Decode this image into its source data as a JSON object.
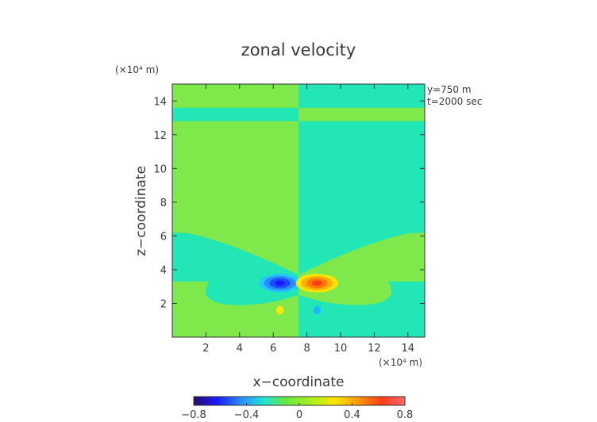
{
  "chart_data": {
    "type": "heatmap",
    "title": "zonal velocity",
    "xlabel": "x−coordinate",
    "ylabel": "z−coordinate",
    "x_unit": "(×10⁴ m)",
    "y_unit": "(×10⁴ m)",
    "xlim": [
      0,
      15
    ],
    "ylim": [
      0,
      15
    ],
    "xticks": [
      2,
      4,
      6,
      8,
      10,
      12,
      14
    ],
    "yticks": [
      2,
      4,
      6,
      8,
      10,
      12,
      14
    ],
    "xtick_labels": [
      "2",
      "4",
      "6",
      "8",
      "10",
      "12",
      "14"
    ],
    "ytick_labels": [
      "2",
      "4",
      "6",
      "8",
      "10",
      "12",
      "14"
    ],
    "annotations": [
      "y=750  m",
      "t=2000 sec"
    ],
    "colorbar": {
      "min": -0.8,
      "max": 0.8,
      "ticks": [
        -0.8,
        -0.4,
        0,
        0.4,
        0.8
      ],
      "tick_labels": [
        "−0.8",
        "−0.4",
        "0",
        "0.4",
        "0.8"
      ],
      "colors": [
        "#2a0a66",
        "#1a1aff",
        "#2a8cff",
        "#1ee6d2",
        "#6fe83a",
        "#a8f01e",
        "#ffe600",
        "#ff9a00",
        "#ff3a1a",
        "#ff6a6a"
      ]
    },
    "features": [
      {
        "name": "negative core",
        "x": 6.4,
        "z": 3.2,
        "value": -0.45
      },
      {
        "name": "positive core",
        "x": 8.6,
        "z": 3.2,
        "value": 0.45
      },
      {
        "name": "small positive blob",
        "x": 6.4,
        "z": 1.6,
        "value": 0.2
      },
      {
        "name": "small negative blob",
        "x": 8.6,
        "z": 1.6,
        "value": -0.2
      }
    ],
    "background": {
      "left_value": 0.08,
      "right_value": -0.08,
      "split_x": 7.5
    }
  }
}
